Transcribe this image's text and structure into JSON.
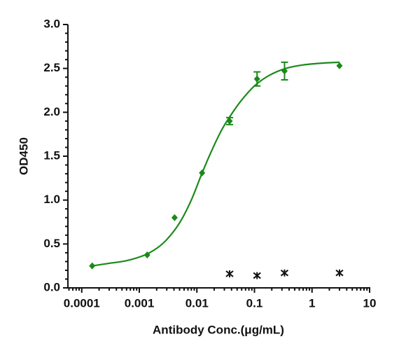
{
  "chart_data": {
    "type": "scatter",
    "xlabel": "Antibody Conc.(μg/mL)",
    "ylabel": "OD450",
    "xscale": "log",
    "xlim": [
      5.75e-05,
      10
    ],
    "ylim": [
      0,
      3
    ],
    "xticks": [
      0.0001,
      0.001,
      0.01,
      0.1,
      1,
      10
    ],
    "yticks": [
      {
        "value": 0,
        "label": "0.0"
      },
      0.5,
      {
        "value": 1,
        "label": "1.0"
      },
      1.5,
      {
        "value": 2,
        "label": "2.0"
      },
      2.5,
      {
        "value": 3,
        "label": "3.0"
      }
    ],
    "series": [
      {
        "color": "#1a8a1a",
        "marker": "diamond",
        "x": [
          0.000152,
          0.00137,
          0.0041,
          0.0123,
          0.037,
          0.111,
          0.333,
          3
        ],
        "values": [
          0.25,
          0.375,
          0.8,
          1.31,
          1.9,
          2.38,
          2.47,
          2.53
        ],
        "errors": [
          null,
          null,
          null,
          null,
          0.04,
          0.08,
          0.1,
          null
        ]
      },
      {
        "color": "#111111",
        "marker": "asterisk",
        "x": [
          0.037,
          0.111,
          0.333,
          3
        ],
        "values": [
          0.16,
          0.14,
          0.17,
          0.17
        ]
      }
    ],
    "fit_curve": {
      "color": "#1a8a1a",
      "x": [
        0.00015,
        0.0003,
        0.0006,
        0.0012,
        0.002,
        0.003,
        0.005,
        0.008,
        0.012,
        0.018,
        0.027,
        0.04,
        0.06,
        0.1,
        0.18,
        0.35,
        0.7,
        1.5,
        3
      ],
      "values": [
        0.25,
        0.28,
        0.31,
        0.37,
        0.45,
        0.55,
        0.74,
        1.0,
        1.29,
        1.56,
        1.8,
        1.98,
        2.14,
        2.3,
        2.42,
        2.5,
        2.54,
        2.56,
        2.57
      ]
    }
  }
}
